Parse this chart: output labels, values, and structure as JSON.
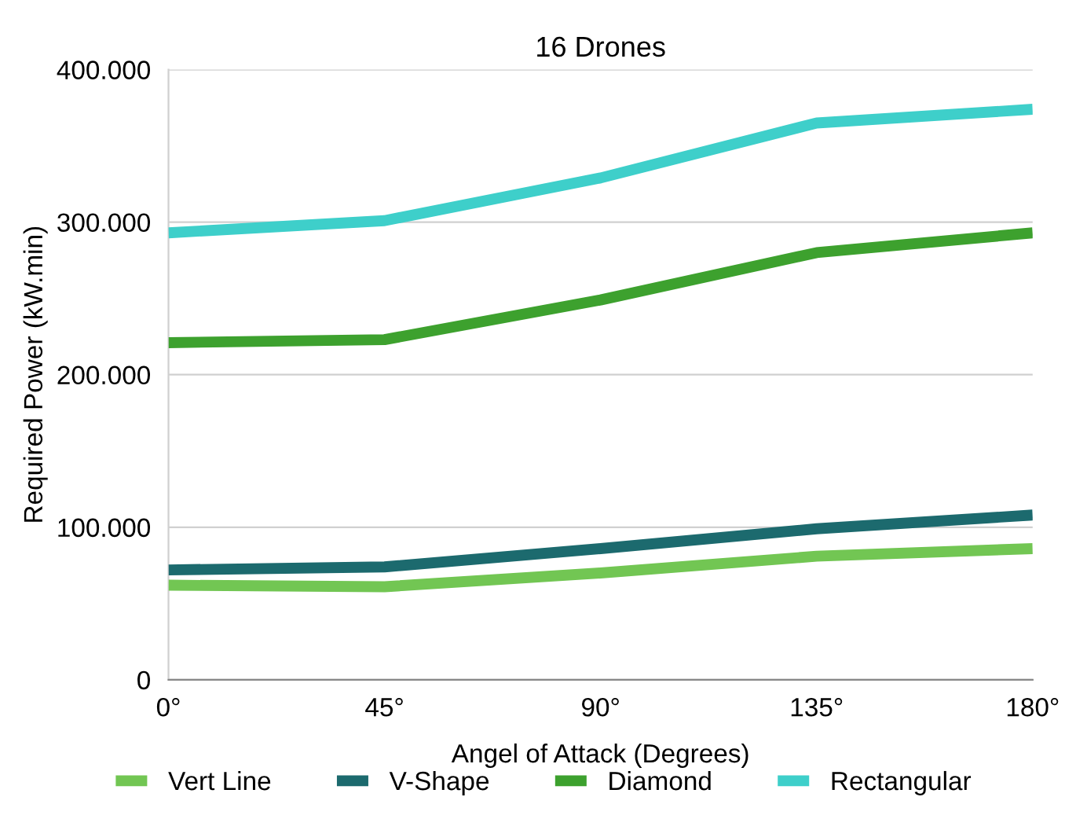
{
  "chart_data": {
    "type": "line",
    "title": "16 Drones",
    "xlabel": "Angel of Attack (Degrees)",
    "ylabel": "Required Power (kW.min)",
    "categories": [
      "0°",
      "45°",
      "90°",
      "135°",
      "180°"
    ],
    "series": [
      {
        "name": "Vert Line",
        "color": "#72c653",
        "values": [
          62000,
          61000,
          70000,
          81000,
          86000
        ]
      },
      {
        "name": "V-Shape",
        "color": "#1c6a6e",
        "values": [
          72000,
          74000,
          86000,
          99000,
          108000
        ]
      },
      {
        "name": "Diamond",
        "color": "#3da12e",
        "values": [
          221000,
          223000,
          249000,
          280000,
          293000
        ]
      },
      {
        "name": "Rectangular",
        "color": "#3ecfca",
        "values": [
          293000,
          301000,
          329000,
          365000,
          374000
        ]
      }
    ],
    "ylim": [
      0,
      400000
    ],
    "yticks": [
      0,
      {
        "value": 100000,
        "label": "100.000"
      },
      {
        "value": 200000,
        "label": "200.000"
      },
      {
        "value": 300000,
        "label": "300.000"
      },
      {
        "value": 400000,
        "label": "400.000"
      }
    ],
    "grid": "y",
    "legend": "bottom",
    "line_style": "solid",
    "marker": "none"
  }
}
